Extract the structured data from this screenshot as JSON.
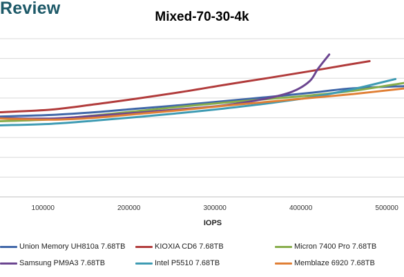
{
  "brand": "Review",
  "chart_data": {
    "type": "line",
    "title": "Mixed-70-30-4k",
    "xlabel": "IOPS",
    "ylabel": "",
    "xlim": [
      50000,
      520000
    ],
    "ylim": [
      0,
      10
    ],
    "x_ticks": [
      "100000",
      "200000",
      "300000",
      "400000",
      "500000"
    ],
    "y_tick_labels_visible": false,
    "grid": "horizontal",
    "legend_position": "bottom",
    "series": [
      {
        "name": "Union Memory UH810a 7.68TB",
        "color": "#3f66a8",
        "x": [
          50000,
          110000,
          160000,
          210000,
          260000,
          310000,
          360000,
          410000,
          460000,
          520000
        ],
        "y": [
          5.08,
          5.18,
          5.35,
          5.58,
          5.8,
          6.05,
          6.3,
          6.57,
          6.86,
          7.0
        ]
      },
      {
        "name": "KIOXIA CD6 7.68TB",
        "color": "#b13b3b",
        "x": [
          50000,
          110000,
          160000,
          210000,
          260000,
          310000,
          360000,
          410000,
          460000,
          480000
        ],
        "y": [
          5.35,
          5.52,
          5.85,
          6.22,
          6.62,
          7.07,
          7.5,
          7.94,
          8.4,
          8.58
        ]
      },
      {
        "name": "Micron 7400 Pro 7.68TB",
        "color": "#87ad4b",
        "x": [
          50000,
          110000,
          160000,
          210000,
          260000,
          310000,
          360000,
          410000,
          460000,
          520000
        ],
        "y": [
          4.78,
          4.9,
          5.15,
          5.42,
          5.7,
          5.95,
          6.18,
          6.41,
          6.7,
          7.2
        ]
      },
      {
        "name": "Samsung PM9A3 7.68TB",
        "color": "#6b4590",
        "x": [
          50000,
          110000,
          160000,
          210000,
          260000,
          310000,
          360000,
          390000,
          410000,
          420000,
          433000
        ],
        "y": [
          4.98,
          4.95,
          5.12,
          5.32,
          5.54,
          5.78,
          6.22,
          6.65,
          7.3,
          8.1,
          9.0
        ]
      },
      {
        "name": "Intel P5510 7.68TB",
        "color": "#3e9bb3",
        "x": [
          50000,
          110000,
          160000,
          210000,
          260000,
          310000,
          360000,
          410000,
          460000,
          510000
        ],
        "y": [
          4.52,
          4.62,
          4.82,
          5.05,
          5.3,
          5.58,
          5.9,
          6.28,
          6.8,
          7.45
        ]
      },
      {
        "name": "Memblaze 6920 7.68TB",
        "color": "#e07f35",
        "x": [
          50000,
          110000,
          160000,
          210000,
          260000,
          310000,
          360000,
          410000,
          460000,
          520000
        ],
        "y": [
          4.95,
          4.88,
          5.0,
          5.24,
          5.48,
          5.75,
          6.0,
          6.25,
          6.5,
          6.85
        ]
      }
    ]
  }
}
